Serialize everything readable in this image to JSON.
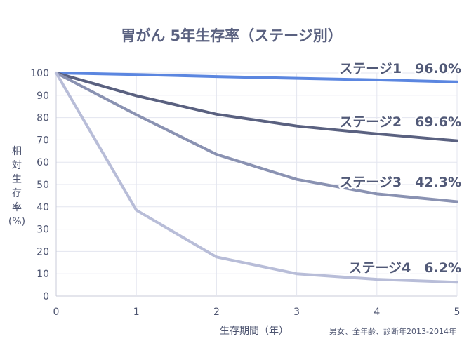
{
  "chart_data": {
    "type": "line",
    "title": "胃がん 5年生存率（ステージ別）",
    "xlabel": "生存期間（年）",
    "ylabel": "相対生存率(%)",
    "ylabel_lines": [
      "相",
      "対",
      "生",
      "存",
      "率",
      "(%)"
    ],
    "note": "男女、全年齢、診断年2013-2014年",
    "xlim": [
      0,
      5
    ],
    "ylim": [
      0,
      100
    ],
    "x": [
      0,
      1,
      2,
      3,
      4,
      5
    ],
    "x_ticks": [
      "0",
      "1",
      "2",
      "3",
      "4",
      "5"
    ],
    "y_ticks": [
      "0",
      "10",
      "20",
      "30",
      "40",
      "50",
      "60",
      "70",
      "80",
      "90",
      "100"
    ],
    "grid": true,
    "series": [
      {
        "label": "ステージ1　96.0%",
        "color": "#5b86e0",
        "values": [
          100,
          99.3,
          98.4,
          97.6,
          96.9,
          96.0
        ]
      },
      {
        "label": "ステージ2　69.6%",
        "color": "#5a6180",
        "values": [
          100,
          89.8,
          81.5,
          76.2,
          72.7,
          69.6
        ]
      },
      {
        "label": "ステージ3　42.3%",
        "color": "#8a92b2",
        "values": [
          100,
          81.3,
          63.5,
          52.3,
          45.8,
          42.3
        ]
      },
      {
        "label": "ステージ4　6.2%",
        "color": "#b8bdd8",
        "values": [
          100,
          38.5,
          17.5,
          10.0,
          7.5,
          6.2
        ]
      }
    ]
  }
}
